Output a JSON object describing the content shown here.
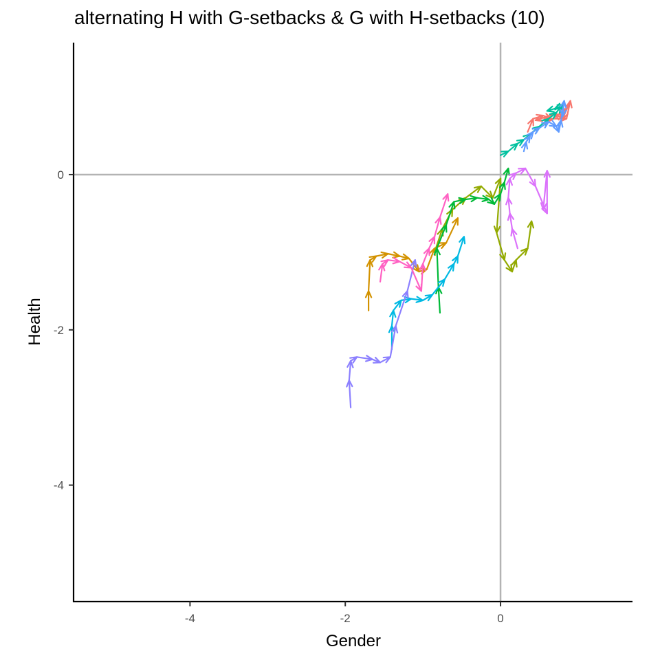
{
  "chart_data": {
    "type": "line",
    "title": "alternating H with G-setbacks & G with H-setbacks (10)",
    "xlabel": "Gender",
    "ylabel": "Health",
    "xlim": [
      -5.5,
      1.7
    ],
    "ylim": [
      -5.5,
      1.7
    ],
    "x_ticks": [
      -4,
      -2,
      0
    ],
    "y_ticks": [
      -4,
      -2,
      0
    ],
    "reference_lines": {
      "x": 0,
      "y": 0
    },
    "grid": false,
    "legend": "none",
    "style": "arrows",
    "series": [
      {
        "color": "#F8766D",
        "x": [
          0.35,
          0.42,
          0.55,
          0.65,
          0.85,
          0.9,
          0.8,
          0.7,
          0.45,
          0.65,
          0.85
        ],
        "y": [
          0.55,
          0.72,
          0.76,
          0.72,
          0.72,
          0.95,
          0.72,
          0.78,
          0.7,
          0.7,
          0.85
        ]
      },
      {
        "color": "#D39200",
        "x": [
          -1.7,
          -1.7,
          -1.68,
          -1.6,
          -1.45,
          -1.3,
          -1.18,
          -1.05,
          -0.95,
          -0.85,
          -0.7,
          -0.55
        ],
        "y": [
          -1.75,
          -1.5,
          -1.1,
          -1.05,
          -1.02,
          -1.05,
          -1.08,
          -1.25,
          -1.22,
          -0.95,
          -0.88,
          -0.56
        ]
      },
      {
        "color": "#93AA00",
        "x": [
          -0.85,
          -0.75,
          -0.62,
          -0.45,
          -0.25,
          -0.1,
          0.0,
          -0.05,
          0.05,
          0.15,
          0.2,
          0.35,
          0.4
        ],
        "y": [
          -1.0,
          -0.7,
          -0.45,
          -0.3,
          -0.15,
          -0.3,
          -0.05,
          -0.75,
          -1.1,
          -1.25,
          -1.1,
          -0.95,
          -0.6
        ]
      },
      {
        "color": "#00BA38",
        "x": [
          -0.78,
          -0.8,
          -0.82,
          -0.7,
          -0.6,
          -0.45,
          -0.3,
          -0.15,
          -0.08,
          0.0,
          0.05,
          0.1
        ],
        "y": [
          -1.78,
          -1.45,
          -0.95,
          -0.65,
          -0.35,
          -0.32,
          -0.3,
          -0.32,
          -0.38,
          -0.25,
          -0.1,
          0.08
        ]
      },
      {
        "color": "#00C19F",
        "x": [
          0.0,
          0.1,
          0.22,
          0.3,
          0.38,
          0.5,
          0.62,
          0.72,
          0.78,
          0.82,
          0.7,
          0.6
        ],
        "y": [
          0.25,
          0.3,
          0.4,
          0.45,
          0.52,
          0.62,
          0.72,
          0.8,
          0.88,
          0.9,
          0.85,
          0.82
        ]
      },
      {
        "color": "#00B9E3",
        "x": [
          -1.4,
          -1.4,
          -1.38,
          -1.28,
          -1.15,
          -1.0,
          -0.88,
          -0.72,
          -0.6,
          -0.55,
          -0.47
        ],
        "y": [
          -2.25,
          -1.95,
          -1.75,
          -1.62,
          -1.6,
          -1.62,
          -1.55,
          -1.35,
          -1.15,
          -1.05,
          -0.8
        ]
      },
      {
        "color": "#619CFF",
        "x": [
          0.3,
          0.33,
          0.38,
          0.42,
          0.5,
          0.62,
          0.72,
          0.75,
          0.78,
          0.82,
          0.8
        ],
        "y": [
          0.3,
          0.42,
          0.5,
          0.55,
          0.6,
          0.68,
          0.62,
          0.55,
          0.7,
          0.95,
          0.75
        ]
      },
      {
        "color": "#8C80FF",
        "x": [
          -1.93,
          -1.95,
          -1.93,
          -1.85,
          -1.65,
          -1.55,
          -1.42,
          -1.35,
          -1.2,
          -1.1
        ],
        "y": [
          -3.0,
          -2.65,
          -2.4,
          -2.35,
          -2.38,
          -2.42,
          -2.35,
          -1.95,
          -1.5,
          -1.1
        ]
      },
      {
        "color": "#DB72FB",
        "x": [
          0.22,
          0.15,
          0.12,
          0.1,
          0.12,
          0.2,
          0.32,
          0.45,
          0.6,
          0.6,
          0.55
        ],
        "y": [
          -0.95,
          -0.7,
          -0.5,
          -0.3,
          -0.05,
          0.02,
          0.08,
          -0.15,
          -0.5,
          0.05,
          -0.45
        ]
      },
      {
        "color": "#FF61C3",
        "x": [
          -1.55,
          -1.52,
          -1.45,
          -1.3,
          -1.15,
          -1.02,
          -1.0,
          -0.92,
          -0.85,
          -0.78,
          -0.68
        ],
        "y": [
          -1.38,
          -1.15,
          -1.1,
          -1.12,
          -1.2,
          -1.5,
          -1.15,
          -0.95,
          -0.8,
          -0.55,
          -0.25
        ]
      }
    ]
  }
}
